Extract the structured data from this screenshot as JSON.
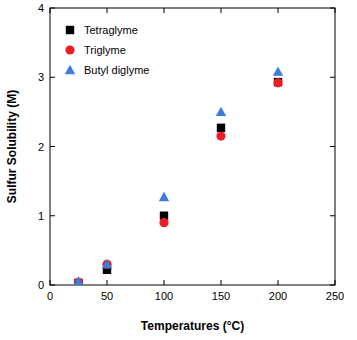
{
  "chart_data": {
    "type": "scatter",
    "x_label": "Temperatures (°C)",
    "y_label": "Sulfur Solubility (M)",
    "x": [
      25,
      50,
      100,
      150,
      200
    ],
    "series": [
      {
        "name": "Tetraglyme",
        "color": "#000000",
        "marker": "square",
        "values": [
          0.03,
          0.22,
          1.0,
          2.27,
          2.93
        ]
      },
      {
        "name": "Triglyme",
        "color": "#ee1c25",
        "marker": "circle",
        "values": [
          0.04,
          0.3,
          0.9,
          2.15,
          2.92
        ]
      },
      {
        "name": "Butyl diglyme",
        "color": "#3b7ddd",
        "marker": "triangle",
        "values": [
          0.05,
          0.3,
          1.27,
          2.5,
          3.08
        ]
      }
    ],
    "xlim": [
      0,
      250
    ],
    "xticks": [
      0,
      50,
      100,
      150,
      200,
      250
    ],
    "ylim": [
      0,
      4
    ],
    "yticks": [
      0,
      1,
      2,
      3,
      4
    ],
    "grid": false,
    "legend": "upper left"
  }
}
